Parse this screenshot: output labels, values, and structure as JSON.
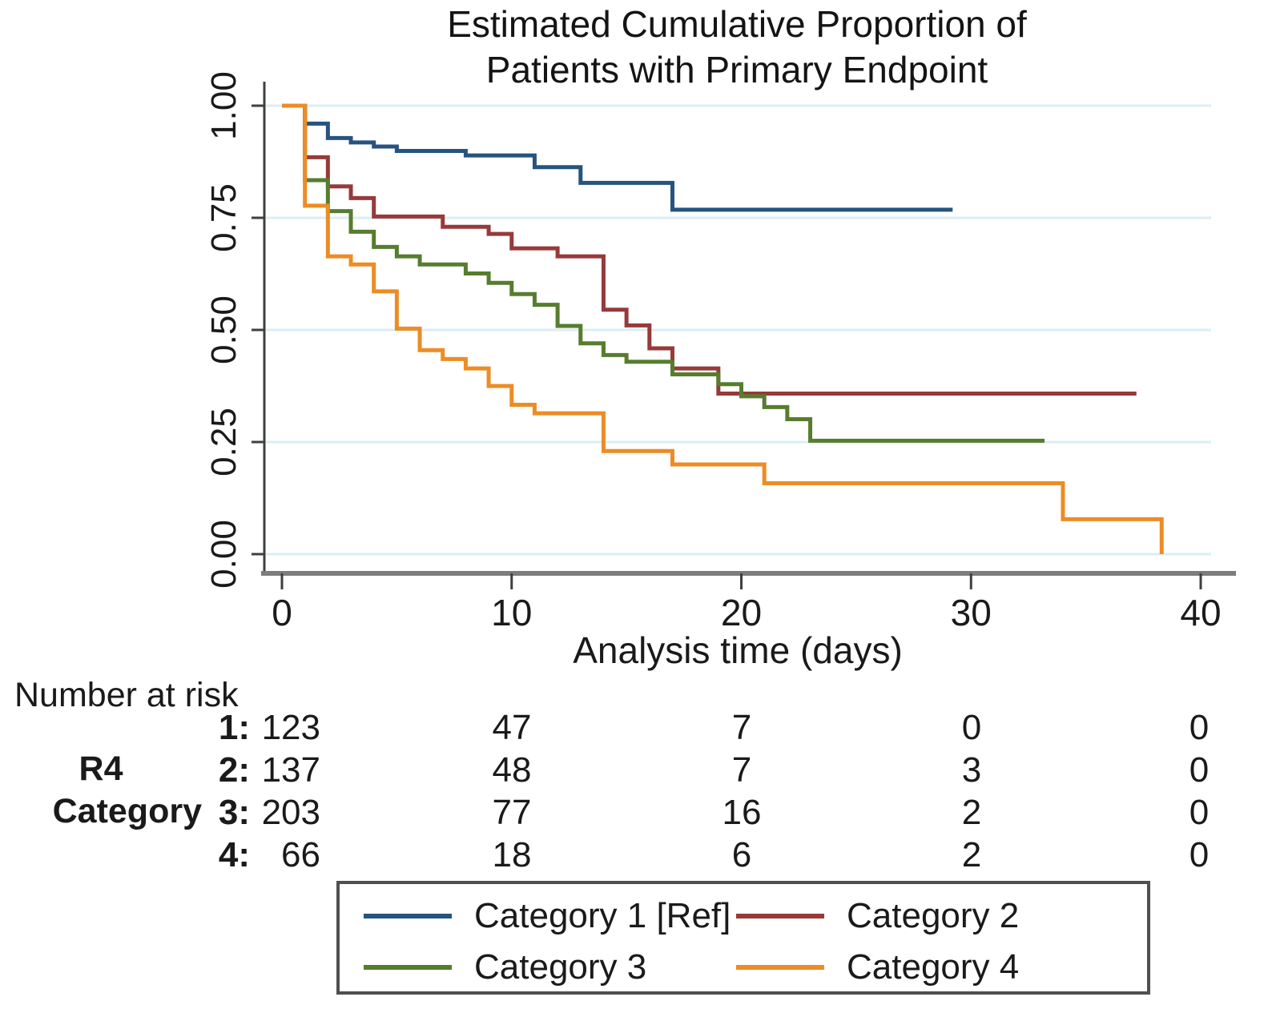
{
  "title": {
    "line1": "Estimated Cumulative Proportion of",
    "line2": "Patients with Primary Endpoint"
  },
  "axes": {
    "x": {
      "label": "Analysis time (days)",
      "ticks": [
        "0",
        "10",
        "20",
        "30",
        "40"
      ],
      "tick_values": [
        0,
        10,
        20,
        30,
        40
      ]
    },
    "y": {
      "ticks": [
        "1.00",
        "0.75",
        "0.50",
        "0.25",
        "0.00"
      ],
      "tick_values": [
        1.0,
        0.75,
        0.5,
        0.25,
        0.0
      ]
    }
  },
  "colors": {
    "navy": "#26537f",
    "maroon": "#963a3a",
    "green": "#567d2e",
    "orange": "#ec8c25",
    "grid": "#ddedf4",
    "axis": "#3f3f3f",
    "axis_baseline": "#7d7d7d",
    "legend_border": "#4f4f4f"
  },
  "chart_data": {
    "type": "line",
    "subtype": "kaplan-meier-step",
    "title": "Estimated Cumulative Proportion of Patients with Primary Endpoint",
    "xlabel": "Analysis time (days)",
    "ylabel": "",
    "xlim": [
      0,
      41
    ],
    "ylim": [
      0.0,
      1.0
    ],
    "grid": "horizontal-light-blue",
    "legend_position": "bottom-box",
    "series": [
      {
        "name": "Category 1 [Ref]",
        "color": "#26537f",
        "end_day": 29.2,
        "steps": [
          [
            0,
            1.0
          ],
          [
            1,
            0.96
          ],
          [
            2,
            0.928
          ],
          [
            3,
            0.918
          ],
          [
            4,
            0.909
          ],
          [
            5,
            0.899
          ],
          [
            8,
            0.889
          ],
          [
            11,
            0.863
          ],
          [
            13,
            0.828
          ],
          [
            17,
            0.768
          ]
        ]
      },
      {
        "name": "Category 2",
        "color": "#963a3a",
        "end_day": 37.2,
        "steps": [
          [
            0,
            1.0
          ],
          [
            1,
            0.885
          ],
          [
            2,
            0.82
          ],
          [
            3,
            0.794
          ],
          [
            4,
            0.753
          ],
          [
            7,
            0.73
          ],
          [
            9,
            0.714
          ],
          [
            10,
            0.682
          ],
          [
            12,
            0.664
          ],
          [
            14,
            0.545
          ],
          [
            15,
            0.51
          ],
          [
            16,
            0.459
          ],
          [
            17,
            0.414
          ],
          [
            19,
            0.358
          ]
        ]
      },
      {
        "name": "Category 3",
        "color": "#567d2e",
        "end_day": 33.2,
        "steps": [
          [
            0,
            1.0
          ],
          [
            1,
            0.834
          ],
          [
            2,
            0.765
          ],
          [
            3,
            0.719
          ],
          [
            4,
            0.685
          ],
          [
            5,
            0.664
          ],
          [
            6,
            0.646
          ],
          [
            8,
            0.626
          ],
          [
            9,
            0.605
          ],
          [
            10,
            0.58
          ],
          [
            11,
            0.556
          ],
          [
            12,
            0.509
          ],
          [
            13,
            0.47
          ],
          [
            14,
            0.444
          ],
          [
            15,
            0.429
          ],
          [
            17,
            0.401
          ],
          [
            19,
            0.379
          ],
          [
            20,
            0.352
          ],
          [
            21,
            0.328
          ],
          [
            22,
            0.301
          ],
          [
            23,
            0.253
          ]
        ]
      },
      {
        "name": "Category 4",
        "color": "#ec8c25",
        "end_day": 38.3,
        "steps": [
          [
            0,
            1.0
          ],
          [
            1,
            0.777
          ],
          [
            2,
            0.664
          ],
          [
            3,
            0.646
          ],
          [
            4,
            0.586
          ],
          [
            5,
            0.503
          ],
          [
            6,
            0.455
          ],
          [
            7,
            0.435
          ],
          [
            8,
            0.414
          ],
          [
            9,
            0.375
          ],
          [
            10,
            0.333
          ],
          [
            11,
            0.314
          ],
          [
            14,
            0.23
          ],
          [
            17,
            0.2
          ],
          [
            21,
            0.158
          ],
          [
            34,
            0.078
          ],
          [
            38.3,
            0.0
          ]
        ]
      }
    ]
  },
  "risk_table": {
    "header": "Number at risk",
    "group_label_lines": [
      "R4",
      "Category"
    ],
    "time_points": [
      0,
      10,
      20,
      30,
      40
    ],
    "rows": [
      {
        "label": "1:",
        "values": [
          "123",
          "47",
          "7",
          "0",
          "0"
        ]
      },
      {
        "label": "2:",
        "values": [
          "137",
          "48",
          "7",
          "3",
          "0"
        ]
      },
      {
        "label": "3:",
        "values": [
          "203",
          "77",
          "16",
          "2",
          "0"
        ]
      },
      {
        "label": "4:",
        "values": [
          "66",
          "18",
          "6",
          "2",
          "0"
        ]
      }
    ]
  },
  "legend": {
    "items": [
      {
        "label": "Category 1 [Ref]",
        "color": "#26537f"
      },
      {
        "label": "Category 2",
        "color": "#963a3a"
      },
      {
        "label": "Category 3",
        "color": "#567d2e"
      },
      {
        "label": "Category 4",
        "color": "#ec8c25"
      }
    ]
  }
}
